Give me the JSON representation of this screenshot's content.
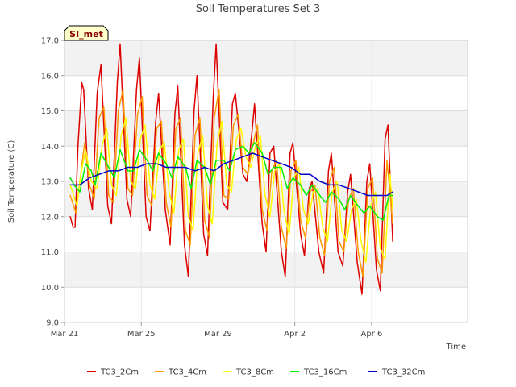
{
  "chart_data": {
    "type": "line",
    "title": "Soil Temperatures Set 3",
    "xlabel": "Time",
    "ylabel": "Soil Temperature (C)",
    "badge": "SI_met",
    "xlim": [
      0,
      21
    ],
    "ylim": [
      9.0,
      17.0
    ],
    "x_ticks": [
      {
        "x": 0,
        "label": "Mar 21"
      },
      {
        "x": 4,
        "label": "Mar 25"
      },
      {
        "x": 8,
        "label": "Mar 29"
      },
      {
        "x": 12,
        "label": "Apr 2"
      },
      {
        "x": 16,
        "label": "Apr 6"
      }
    ],
    "y_ticks": [
      9.0,
      10.0,
      11.0,
      12.0,
      13.0,
      14.0,
      15.0,
      16.0,
      17.0
    ],
    "grid": true,
    "legend_position": "bottom",
    "series": [
      {
        "name": "TC3_2Cm",
        "color": "#dd0000",
        "x": [
          0.3,
          0.45,
          0.55,
          0.7,
          0.9,
          1.0,
          1.25,
          1.45,
          1.7,
          1.9,
          2.25,
          2.45,
          2.75,
          2.9,
          3.25,
          3.45,
          3.75,
          3.9,
          4.25,
          4.45,
          4.75,
          4.9,
          5.25,
          5.5,
          5.75,
          5.9,
          6.25,
          6.45,
          6.75,
          6.9,
          7.25,
          7.45,
          7.75,
          7.9,
          8.25,
          8.5,
          8.75,
          8.9,
          9.3,
          9.5,
          9.75,
          9.9,
          10.3,
          10.5,
          10.7,
          10.9,
          11.3,
          11.5,
          11.75,
          11.9,
          12.3,
          12.5,
          12.75,
          12.9,
          13.25,
          13.5,
          13.75,
          13.9,
          14.25,
          14.5,
          14.75,
          14.9,
          15.25,
          15.5,
          15.75,
          15.9,
          16.25,
          16.45,
          16.7,
          16.85,
          17.1
        ],
        "y": [
          12.0,
          11.7,
          11.7,
          14.0,
          15.8,
          15.6,
          12.8,
          12.2,
          15.5,
          16.3,
          12.3,
          11.8,
          15.8,
          16.9,
          12.5,
          12.0,
          15.6,
          16.5,
          12.0,
          11.6,
          14.7,
          15.5,
          12.2,
          11.2,
          14.9,
          15.7,
          11.2,
          10.3,
          15.0,
          16.0,
          11.5,
          10.9,
          15.4,
          16.9,
          12.4,
          12.2,
          15.2,
          15.5,
          13.2,
          13.0,
          14.3,
          15.2,
          11.8,
          11.0,
          13.8,
          14.0,
          11.0,
          10.3,
          13.8,
          14.1,
          11.5,
          10.9,
          12.8,
          13.0,
          11.0,
          10.4,
          13.3,
          13.8,
          11.0,
          10.6,
          12.7,
          13.2,
          10.7,
          9.8,
          13.0,
          13.5,
          10.5,
          9.9,
          14.2,
          14.6,
          11.3
        ]
      },
      {
        "name": "TC3_4Cm",
        "color": "#ff9900",
        "x": [
          0.3,
          0.6,
          0.8,
          1.05,
          1.3,
          1.55,
          1.8,
          2.05,
          2.3,
          2.55,
          2.8,
          3.05,
          3.3,
          3.55,
          3.8,
          4.05,
          4.3,
          4.55,
          4.8,
          5.05,
          5.3,
          5.55,
          5.8,
          6.05,
          6.3,
          6.55,
          6.8,
          7.05,
          7.3,
          7.55,
          7.8,
          8.05,
          8.3,
          8.55,
          8.8,
          9.05,
          9.3,
          9.55,
          9.8,
          10.05,
          10.3,
          10.55,
          10.8,
          11.05,
          11.3,
          11.55,
          11.8,
          12.05,
          12.3,
          12.55,
          12.8,
          13.05,
          13.3,
          13.55,
          13.8,
          14.05,
          14.3,
          14.55,
          14.8,
          15.05,
          15.3,
          15.55,
          15.8,
          16.05,
          16.3,
          16.55,
          16.8,
          17.1
        ],
        "y": [
          12.6,
          12.1,
          13.0,
          14.1,
          12.9,
          12.5,
          14.8,
          15.1,
          12.6,
          12.4,
          15.0,
          15.6,
          12.8,
          12.6,
          14.9,
          15.4,
          12.6,
          12.3,
          14.5,
          14.7,
          12.4,
          11.7,
          14.5,
          14.8,
          11.6,
          11.2,
          14.3,
          14.8,
          11.9,
          11.4,
          14.8,
          15.6,
          12.6,
          12.5,
          14.6,
          14.9,
          13.4,
          13.2,
          14.0,
          14.6,
          12.2,
          11.6,
          13.3,
          13.6,
          11.7,
          11.1,
          13.3,
          13.6,
          11.9,
          11.4,
          12.7,
          12.9,
          11.4,
          10.9,
          13.0,
          13.4,
          11.3,
          11.0,
          12.5,
          12.8,
          11.0,
          10.3,
          12.8,
          13.1,
          10.8,
          10.4,
          13.6,
          11.8
        ]
      },
      {
        "name": "TC3_8Cm",
        "color": "#ffff00",
        "x": [
          0.3,
          0.65,
          0.85,
          1.1,
          1.4,
          1.7,
          1.95,
          2.2,
          2.45,
          2.7,
          2.95,
          3.2,
          3.45,
          3.7,
          3.95,
          4.2,
          4.45,
          4.7,
          4.95,
          5.2,
          5.45,
          5.7,
          5.95,
          6.2,
          6.45,
          6.7,
          6.95,
          7.2,
          7.45,
          7.7,
          7.95,
          8.2,
          8.45,
          8.7,
          8.95,
          9.2,
          9.45,
          9.7,
          9.95,
          10.2,
          10.45,
          10.7,
          10.95,
          11.2,
          11.45,
          11.7,
          11.95,
          12.2,
          12.45,
          12.7,
          12.95,
          13.2,
          13.45,
          13.7,
          13.95,
          14.2,
          14.45,
          14.7,
          14.95,
          15.2,
          15.45,
          15.7,
          15.95,
          16.2,
          16.45,
          16.7,
          16.95,
          17.1
        ],
        "y": [
          12.9,
          12.3,
          13.2,
          13.9,
          13.0,
          12.8,
          14.0,
          14.5,
          12.9,
          12.6,
          14.3,
          14.8,
          13.0,
          12.8,
          14.2,
          14.6,
          12.9,
          12.5,
          13.9,
          14.1,
          12.7,
          12.1,
          13.9,
          14.2,
          12.0,
          11.6,
          13.8,
          14.3,
          12.3,
          11.8,
          14.1,
          14.7,
          12.9,
          12.7,
          14.2,
          14.5,
          13.7,
          13.4,
          14.0,
          14.3,
          12.6,
          12.0,
          13.3,
          13.5,
          12.1,
          11.5,
          13.1,
          13.4,
          12.2,
          11.8,
          12.7,
          12.8,
          11.7,
          11.3,
          12.7,
          13.0,
          11.6,
          11.3,
          12.2,
          12.5,
          11.3,
          10.7,
          12.3,
          12.7,
          11.1,
          10.8,
          13.2,
          12.2
        ]
      },
      {
        "name": "TC3_16Cm",
        "color": "#00ee00",
        "x": [
          0.3,
          0.5,
          0.8,
          1.1,
          1.4,
          1.6,
          1.9,
          2.3,
          2.6,
          2.9,
          3.3,
          3.6,
          3.9,
          4.3,
          4.6,
          4.9,
          5.3,
          5.6,
          5.9,
          6.3,
          6.6,
          6.9,
          7.3,
          7.6,
          7.9,
          8.3,
          8.6,
          8.9,
          9.3,
          9.6,
          9.9,
          10.3,
          10.6,
          10.9,
          11.3,
          11.6,
          11.9,
          12.3,
          12.6,
          12.9,
          13.3,
          13.6,
          13.9,
          14.3,
          14.6,
          14.9,
          15.3,
          15.6,
          15.9,
          16.3,
          16.6,
          16.9,
          17.1
        ],
        "y": [
          13.1,
          12.9,
          12.7,
          13.5,
          13.3,
          12.9,
          13.8,
          13.4,
          13.1,
          13.9,
          13.3,
          13.3,
          13.9,
          13.6,
          13.3,
          13.8,
          13.5,
          13.1,
          13.7,
          13.4,
          12.8,
          13.6,
          13.4,
          12.9,
          13.6,
          13.6,
          13.3,
          13.9,
          14.0,
          13.8,
          14.1,
          13.8,
          13.2,
          13.4,
          13.4,
          12.8,
          13.1,
          12.9,
          12.6,
          12.9,
          12.6,
          12.4,
          12.7,
          12.5,
          12.2,
          12.6,
          12.3,
          12.1,
          12.3,
          12.0,
          11.9,
          12.6,
          12.6
        ]
      },
      {
        "name": "TC3_32Cm",
        "color": "#0000cc",
        "x": [
          0.3,
          0.8,
          1.3,
          1.8,
          2.3,
          2.8,
          3.3,
          3.8,
          4.3,
          4.8,
          5.3,
          5.8,
          6.3,
          6.8,
          7.3,
          7.8,
          8.3,
          8.8,
          9.3,
          9.8,
          10.3,
          10.8,
          11.3,
          11.8,
          12.3,
          12.8,
          13.3,
          13.8,
          14.3,
          14.8,
          15.3,
          15.8,
          16.3,
          16.8,
          17.1
        ],
        "y": [
          12.9,
          12.9,
          13.1,
          13.2,
          13.3,
          13.3,
          13.4,
          13.4,
          13.5,
          13.5,
          13.4,
          13.4,
          13.4,
          13.3,
          13.4,
          13.3,
          13.5,
          13.6,
          13.7,
          13.8,
          13.7,
          13.6,
          13.5,
          13.4,
          13.2,
          13.2,
          13.0,
          12.9,
          12.9,
          12.8,
          12.7,
          12.6,
          12.6,
          12.6,
          12.7
        ]
      }
    ]
  }
}
